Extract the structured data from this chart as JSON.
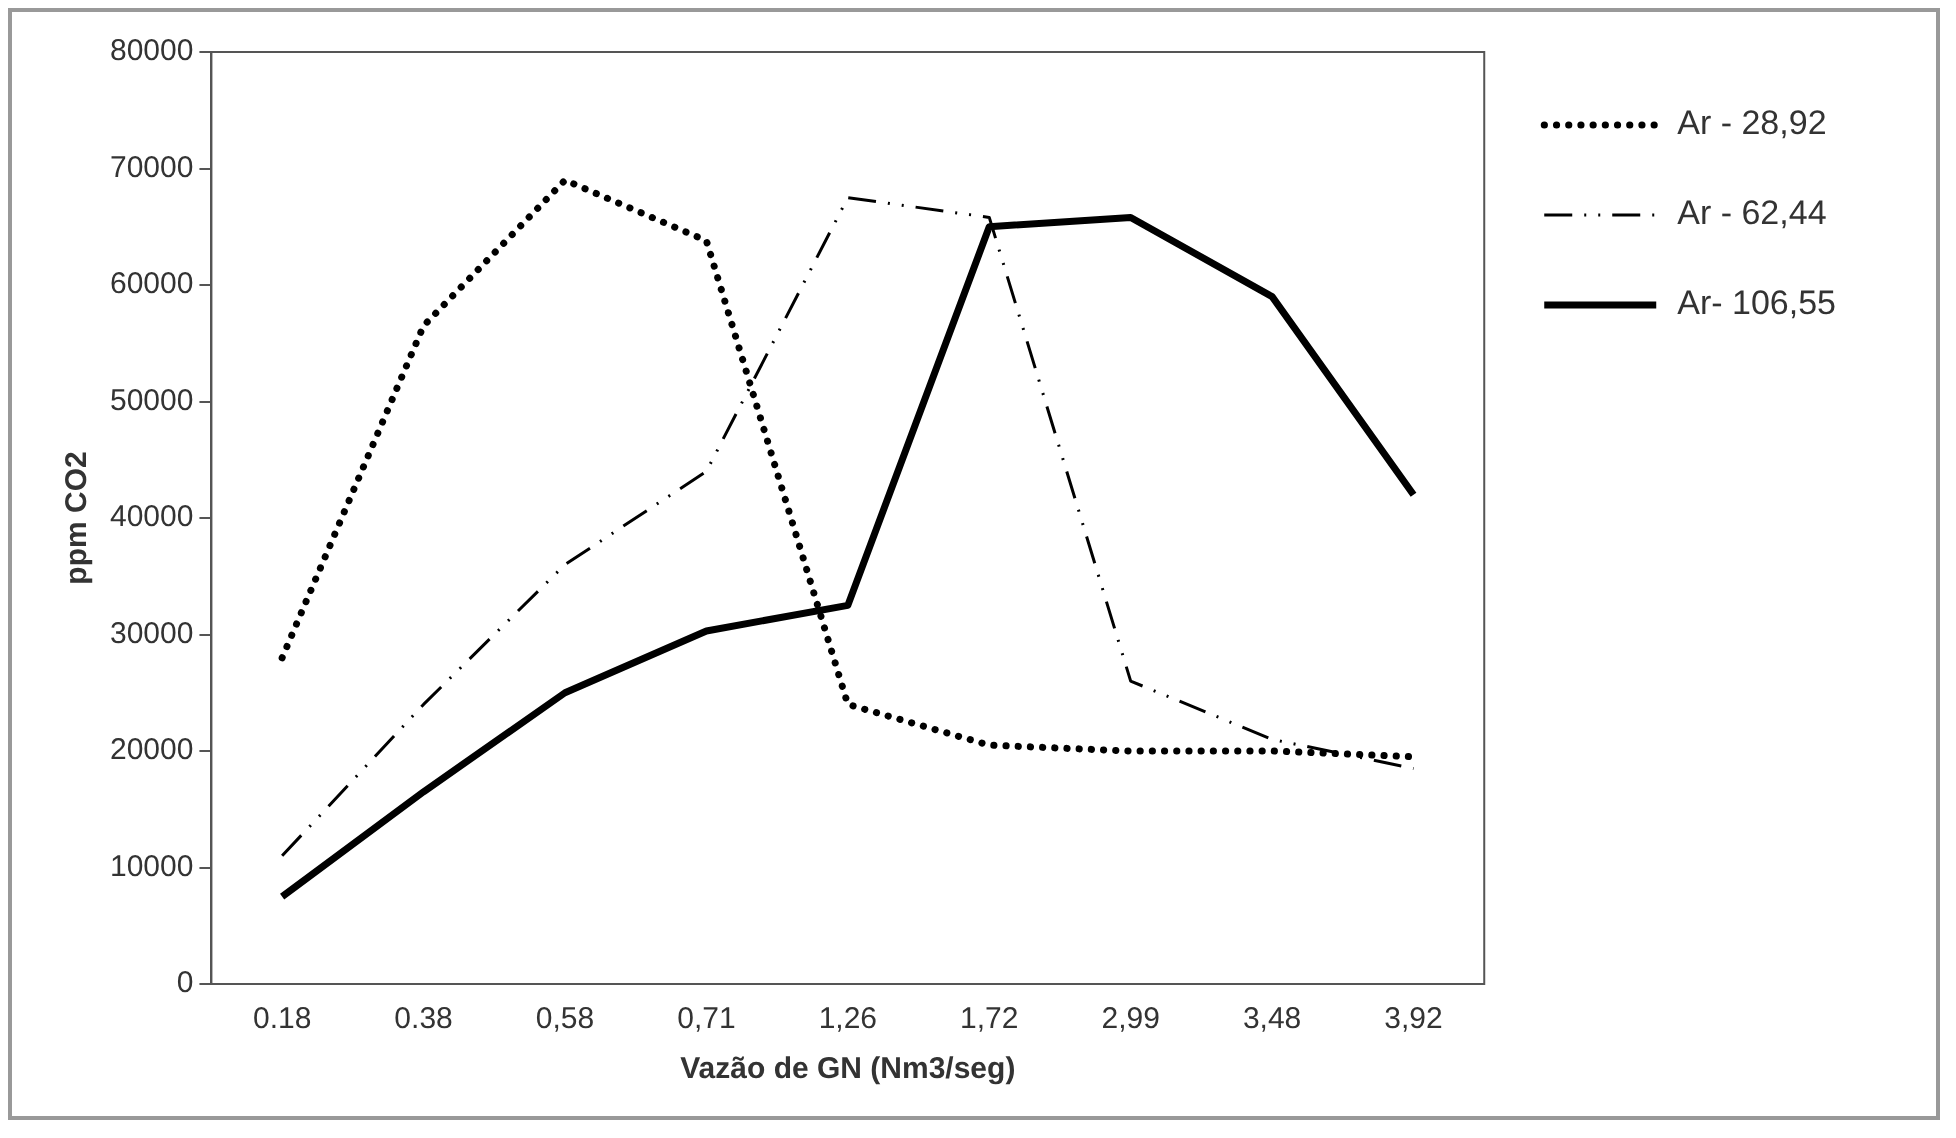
{
  "chart_data": {
    "type": "line",
    "xlabel": "Vazão de GN (Nm3/seg)",
    "ylabel": "ppm CO2",
    "categories": [
      "0.18",
      "0.38",
      "0,58",
      "0,71",
      "1,26",
      "1,72",
      "2,99",
      "3,48",
      "3,92"
    ],
    "ylim": [
      0,
      80000
    ],
    "yticks": [
      0,
      10000,
      20000,
      30000,
      40000,
      50000,
      60000,
      70000,
      80000
    ],
    "grid": false,
    "legend": "right",
    "marker": "none",
    "series": [
      {
        "name": "Ar - 28,92",
        "color": "#000000",
        "line_style": "dotted",
        "values": [
          28000,
          56500,
          69000,
          63800,
          24000,
          20500,
          20000,
          20000,
          19500
        ]
      },
      {
        "name": "Ar - 62,44",
        "color": "#000000",
        "line_style": "dashdot",
        "values": [
          11000,
          24000,
          36000,
          44000,
          67500,
          65800,
          26000,
          21000,
          18500
        ]
      },
      {
        "name": "Ar- 106,55",
        "color": "#000000",
        "line_style": "solid",
        "values": [
          7500,
          16500,
          25000,
          30300,
          32500,
          65000,
          65800,
          59000,
          42000
        ]
      }
    ]
  }
}
